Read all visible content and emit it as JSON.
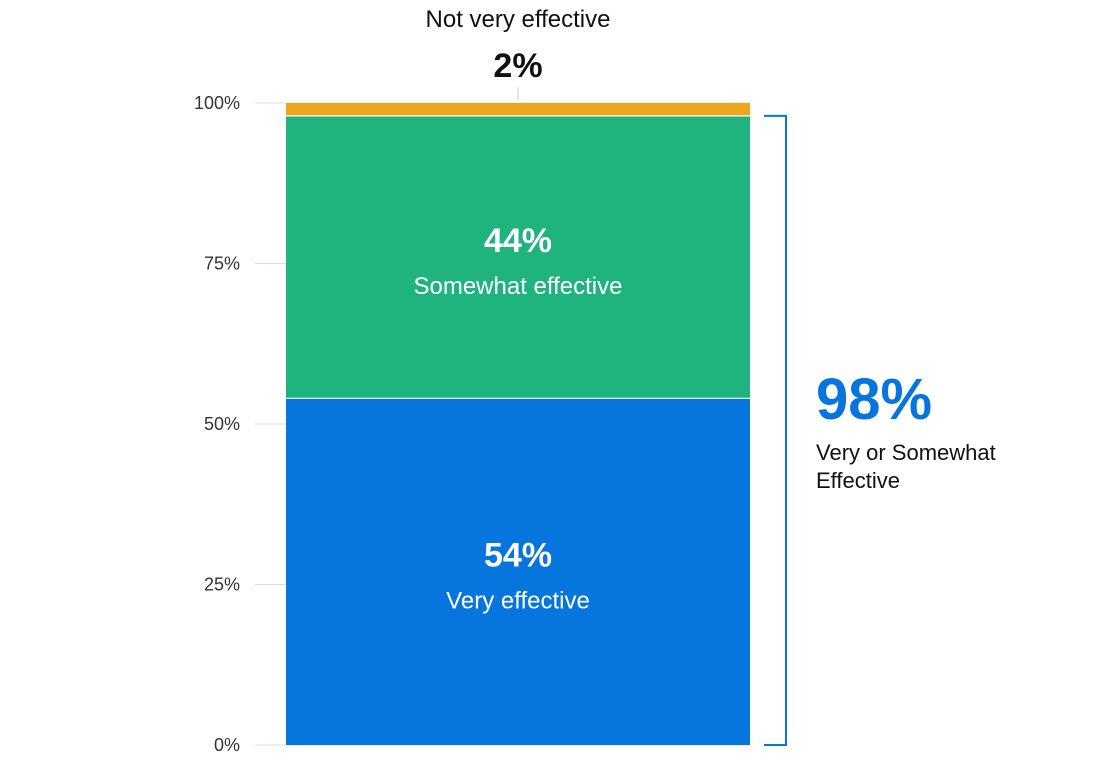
{
  "chart_data": {
    "type": "bar",
    "stacked": true,
    "title": "",
    "xlabel": "",
    "ylabel": "",
    "ylim": [
      0,
      100
    ],
    "yticks": [
      0,
      25,
      50,
      75,
      100
    ],
    "ytick_labels": [
      "0%",
      "25%",
      "50%",
      "75%",
      "100%"
    ],
    "series": [
      {
        "name": "Very effective",
        "value": 54,
        "label": "54%",
        "color": "#0675DD"
      },
      {
        "name": "Somewhat effective",
        "value": 44,
        "label": "44%",
        "color": "#1FB37E"
      },
      {
        "name": "Not very effective",
        "value": 2,
        "label": "2%",
        "color": "#EDA51C"
      }
    ],
    "bracket": {
      "from": 0,
      "to": 98,
      "value_label": "98%",
      "text_lines": [
        "Very or Somewhat",
        "Effective"
      ],
      "color": "#0675DD"
    }
  }
}
